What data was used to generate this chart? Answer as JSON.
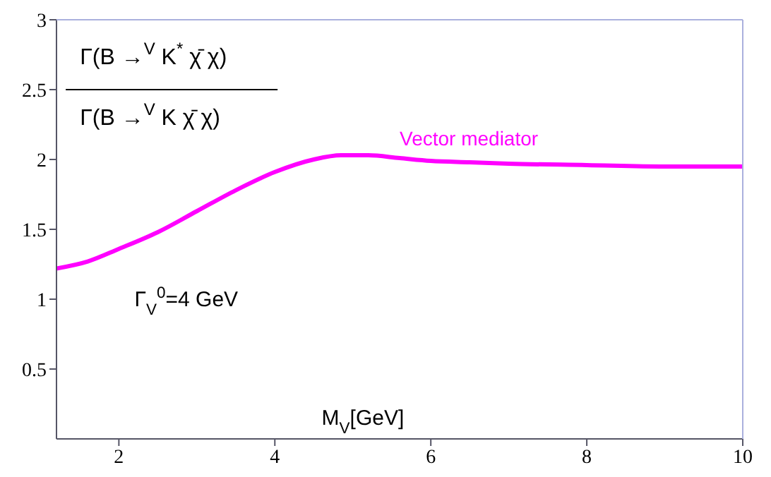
{
  "chart_data": {
    "type": "line",
    "xlabel": "M$_{V}$[GeV]",
    "annotations": [
      "Γ(B →$^{V}$ K$^{*}$ χ̄ χ)",
      "Γ(B →$^{V}$ K χ̄ χ)",
      "Γ$_{V}$$^{0}$=4 GeV"
    ],
    "x": [
      1.2,
      1.6,
      2,
      2.5,
      3,
      3.5,
      4,
      4.5,
      4.85,
      5.2,
      5.6,
      6,
      6.5,
      7,
      8,
      9,
      10
    ],
    "series": [
      {
        "name": "Vector mediator",
        "color": "#ff00ff",
        "values": [
          1.22,
          1.27,
          1.36,
          1.48,
          1.63,
          1.78,
          1.91,
          2.0,
          2.03,
          2.03,
          2.01,
          1.99,
          1.98,
          1.97,
          1.96,
          1.95,
          1.95
        ]
      }
    ],
    "xlim": [
      1.2,
      10
    ],
    "xticks": [
      2,
      4,
      6,
      8,
      10
    ],
    "ylim": [
      0,
      3
    ],
    "yticks": [
      0.5,
      1,
      1.5,
      2,
      2.5,
      3
    ],
    "grid": false,
    "legend": false,
    "marker": "none",
    "line_style": "solid"
  }
}
